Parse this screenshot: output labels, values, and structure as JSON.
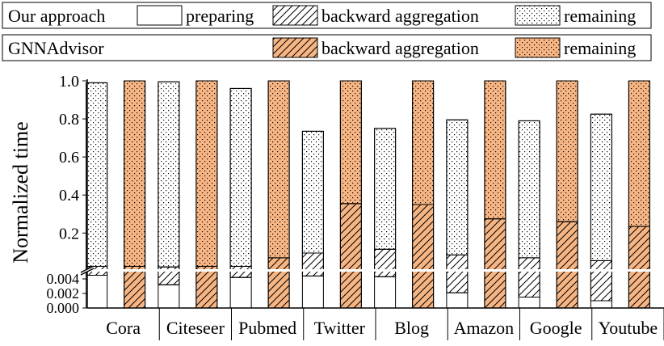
{
  "legend": {
    "row1": {
      "label": "Our approach",
      "entries": [
        "preparing",
        "backward aggregation",
        "remaining"
      ]
    },
    "row2": {
      "label": "GNNAdvisor",
      "entries": [
        "backward aggregation",
        "remaining"
      ]
    }
  },
  "colors": {
    "ours_fill": "#ffffff",
    "gnnadvisor_fill": "#f7b584",
    "stroke": "#000000"
  },
  "chart_data": {
    "type": "bar",
    "stacked": true,
    "broken_axis": true,
    "ylabel": "Normalized time",
    "xlabel": "",
    "categories": [
      "Cora",
      "Citeseer",
      "Pubmed",
      "Twitter",
      "Blog",
      "Amazon",
      "Google",
      "Youtube"
    ],
    "axis_lower": {
      "ylim": [
        0,
        0.005
      ],
      "ticks": [
        "0.000",
        "0.002",
        "0.004"
      ]
    },
    "axis_upper": {
      "ylim": [
        0.01,
        1.0
      ],
      "ticks": [
        "0.2",
        "0.4",
        "0.6",
        "0.8",
        "1.0"
      ]
    },
    "series": [
      {
        "name": "Our approach",
        "segments": {
          "preparing": [
            0.0045,
            0.0032,
            0.0042,
            0.0044,
            0.0043,
            0.0021,
            0.0015,
            0.001
          ],
          "backward_aggregation_top": [
            0.025,
            0.022,
            0.025,
            0.095,
            0.115,
            0.085,
            0.07,
            0.055
          ],
          "total": [
            0.99,
            0.995,
            0.96,
            0.735,
            0.75,
            0.795,
            0.79,
            0.825
          ]
        }
      },
      {
        "name": "GNNAdvisor",
        "segments": {
          "backward_aggregation_top": [
            0.025,
            0.025,
            0.07,
            0.355,
            0.35,
            0.275,
            0.26,
            0.235
          ],
          "total": [
            1.0,
            1.0,
            1.0,
            1.0,
            1.0,
            1.0,
            1.0,
            1.0
          ]
        }
      }
    ]
  }
}
